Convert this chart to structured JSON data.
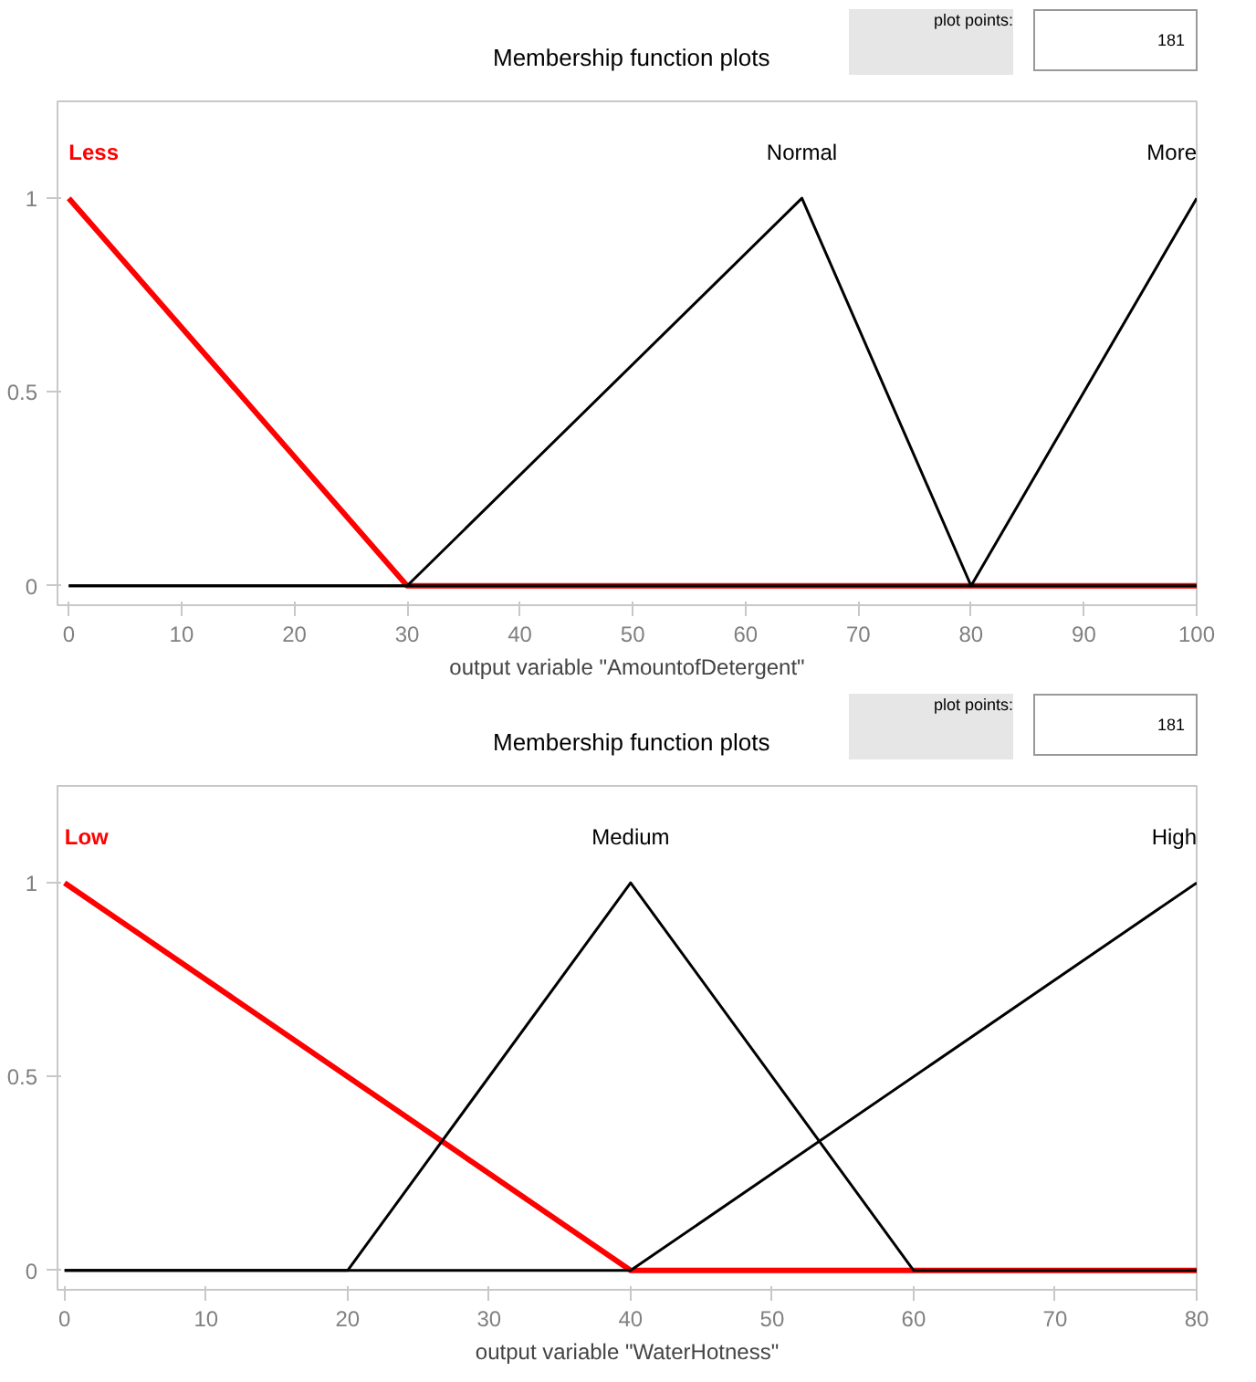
{
  "chart_data": [
    {
      "type": "line",
      "title": "Membership function plots",
      "xlabel": "output variable \"AmountofDetergent\"",
      "annotations": [
        "plot points:",
        "181"
      ],
      "xlim": [
        -1,
        100
      ],
      "ylim": [
        -0.05,
        1.25
      ],
      "xticks": [
        0,
        10,
        20,
        30,
        40,
        50,
        60,
        70,
        80,
        90,
        100
      ],
      "yticks": [
        0,
        0.5,
        1
      ],
      "grid": false,
      "series": [
        {
          "name": "Less",
          "color": "#ff0000",
          "x": [
            0,
            30,
            100
          ],
          "values": [
            1,
            0,
            0
          ]
        },
        {
          "name": "Normal",
          "color": "#000000",
          "x": [
            0,
            30,
            65,
            80,
            100
          ],
          "values": [
            0,
            0,
            1,
            0,
            0
          ]
        },
        {
          "name": "More",
          "color": "#000000",
          "x": [
            0,
            80,
            100
          ],
          "values": [
            0,
            0,
            1
          ]
        }
      ]
    },
    {
      "type": "line",
      "title": "Membership function plots",
      "xlabel": "output variable \"WaterHotness\"",
      "annotations": [
        "plot points:",
        "181"
      ],
      "xlim": [
        -0.5,
        80
      ],
      "ylim": [
        -0.05,
        1.25
      ],
      "xticks": [
        0,
        10,
        20,
        30,
        40,
        50,
        60,
        70,
        80
      ],
      "yticks": [
        0,
        0.5,
        1
      ],
      "grid": false,
      "series": [
        {
          "name": "Low",
          "color": "#ff0000",
          "x": [
            0,
            40,
            80
          ],
          "values": [
            1,
            0,
            0
          ]
        },
        {
          "name": "Medium",
          "color": "#000000",
          "x": [
            0,
            20,
            40,
            60,
            80
          ],
          "values": [
            0,
            0,
            1,
            0,
            0
          ]
        },
        {
          "name": "High",
          "color": "#000000",
          "x": [
            0,
            40,
            80
          ],
          "values": [
            0,
            0,
            1
          ]
        }
      ]
    }
  ]
}
